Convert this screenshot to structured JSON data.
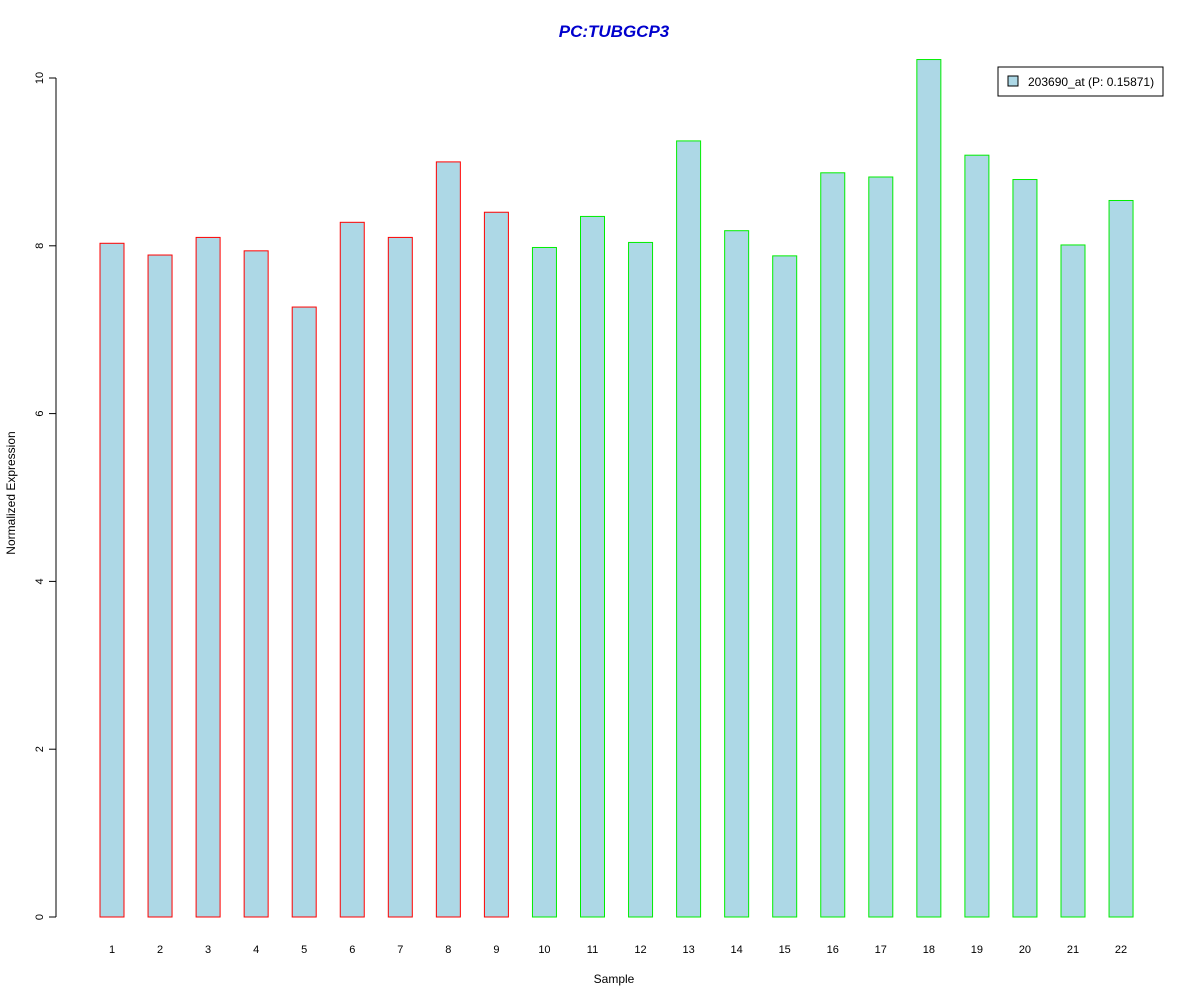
{
  "chart_data": {
    "type": "bar",
    "title": "PC:TUBGCP3",
    "xlabel": "Sample",
    "ylabel": "Normalized Expression",
    "categories": [
      "1",
      "2",
      "3",
      "4",
      "5",
      "6",
      "7",
      "8",
      "9",
      "10",
      "11",
      "12",
      "13",
      "14",
      "15",
      "16",
      "17",
      "18",
      "19",
      "20",
      "21",
      "22"
    ],
    "series": [
      {
        "name": "203690_at (P: 0.15871)",
        "values": [
          8.03,
          7.89,
          8.1,
          7.94,
          7.27,
          8.28,
          8.1,
          9.0,
          8.4,
          7.98,
          8.35,
          8.04,
          9.25,
          8.18,
          7.88,
          8.87,
          8.82,
          10.22,
          9.08,
          8.79,
          8.01,
          8.54
        ]
      }
    ],
    "group_colors": [
      "#ff0000",
      "#ff0000",
      "#ff0000",
      "#ff0000",
      "#ff0000",
      "#ff0000",
      "#ff0000",
      "#ff0000",
      "#ff0000",
      "#00ee00",
      "#00ee00",
      "#00ee00",
      "#00ee00",
      "#00ee00",
      "#00ee00",
      "#00ee00",
      "#00ee00",
      "#00ee00",
      "#00ee00",
      "#00ee00",
      "#00ee00",
      "#00ee00"
    ],
    "bar_fill": "#add8e6",
    "title_color": "#0000cd",
    "ylim": [
      0,
      10.22
    ],
    "yticks": [
      "0",
      "2",
      "4",
      "6",
      "8",
      "10"
    ],
    "grid": false,
    "legend_position": "top-right"
  }
}
